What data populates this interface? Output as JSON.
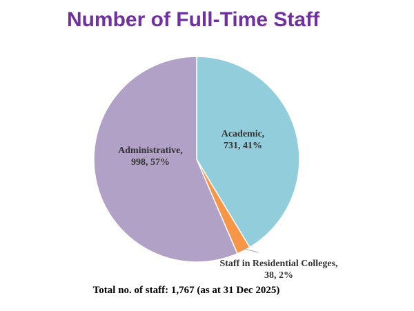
{
  "title": "Number of Full-Time Staff",
  "footer": "Total no. of staff: 1,767 (as at 31 Dec 2025)",
  "chart_data": {
    "type": "pie",
    "title": "Number of Full-Time Staff",
    "start_angle_deg": 0,
    "direction": "clockwise",
    "slices": [
      {
        "name": "Academic",
        "value": 731,
        "percent": "41%",
        "line1": "Academic,",
        "line2": "731, 41%",
        "color": "#92cddc"
      },
      {
        "name": "Staff in Residential Colleges",
        "value": 38,
        "percent": "2%",
        "line1": "Staff in Residential Colleges,",
        "line2": "38, 2%",
        "color": "#f79646"
      },
      {
        "name": "Administrative",
        "value": 998,
        "percent": "57%",
        "line1": "Administrative,",
        "line2": "998, 57%",
        "color": "#b2a1c7"
      }
    ],
    "total": 1767
  }
}
